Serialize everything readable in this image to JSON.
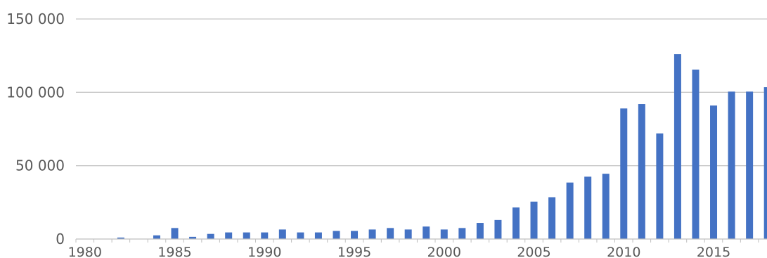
{
  "chart_data": {
    "type": "bar",
    "title": "",
    "xlabel": "",
    "ylabel": "",
    "bar_color": "#4472c4",
    "grid": true,
    "legend": "none",
    "ylim": [
      0,
      150000
    ],
    "y_ticks": [
      {
        "value": 0,
        "label": "0"
      },
      {
        "value": 50000,
        "label": "50 000"
      },
      {
        "value": 100000,
        "label": "100 000"
      },
      {
        "value": 150000,
        "label": "150 000"
      }
    ],
    "x_tick_labels": [
      {
        "year": 1980,
        "label": "1980"
      },
      {
        "year": 1985,
        "label": "1985"
      },
      {
        "year": 1990,
        "label": "1990"
      },
      {
        "year": 1995,
        "label": "1995"
      },
      {
        "year": 2000,
        "label": "2000"
      },
      {
        "year": 2005,
        "label": "2005"
      },
      {
        "year": 2010,
        "label": "2010"
      },
      {
        "year": 2015,
        "label": "2015"
      }
    ],
    "categories": [
      1980,
      1981,
      1982,
      1983,
      1984,
      1985,
      1986,
      1987,
      1988,
      1989,
      1990,
      1991,
      1992,
      1993,
      1994,
      1995,
      1996,
      1997,
      1998,
      1999,
      2000,
      2001,
      2002,
      2003,
      2004,
      2005,
      2006,
      2007,
      2008,
      2009,
      2010,
      2011,
      2012,
      2013,
      2014,
      2015,
      2016,
      2017,
      2018
    ],
    "values": [
      0,
      0,
      1000,
      0,
      2500,
      7500,
      1500,
      3500,
      4500,
      4500,
      4500,
      6500,
      4500,
      4500,
      5500,
      5500,
      6500,
      7500,
      6500,
      8500,
      6500,
      7500,
      11000,
      13000,
      21500,
      25500,
      28500,
      38500,
      42500,
      44500,
      89000,
      92000,
      72000,
      126000,
      115500,
      91000,
      100500,
      100500,
      103500
    ]
  }
}
